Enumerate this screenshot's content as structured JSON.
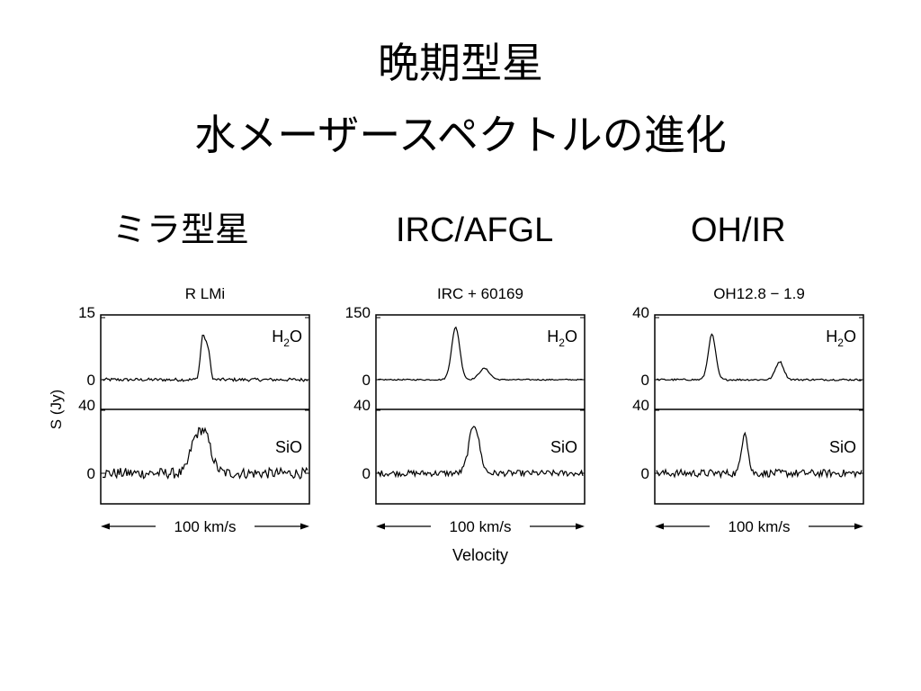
{
  "slide": {
    "title_line1": "晩期型星",
    "title_line2": "水メーザースペクトルの進化",
    "categories": [
      "ミラ型星",
      "IRC/AFGL",
      "OH/IR"
    ]
  },
  "figure": {
    "ylabel": "S (Jy)",
    "xlabel": "Velocity",
    "scalebar_label": "100 km/s"
  },
  "chart_data": [
    {
      "type": "line",
      "title": "R LMi",
      "panels": [
        {
          "name": "H2O",
          "ylim": [
            0,
            15
          ],
          "ytick_top": "15",
          "ytick_bottom": "0",
          "peaks": [
            {
              "x": 0.49,
              "height": 11,
              "width": 0.012
            },
            {
              "x": 0.515,
              "height": 7,
              "width": 0.01
            }
          ],
          "noise": 0.4
        },
        {
          "name": "SiO",
          "ylim": [
            0,
            40
          ],
          "ytick_top": "40",
          "ytick_bottom": "0",
          "peaks": [
            {
              "x": 0.49,
              "height": 28,
              "width": 0.035
            },
            {
              "x": 0.44,
              "height": 10,
              "width": 0.02
            }
          ],
          "noise": 3.5
        }
      ]
    },
    {
      "type": "line",
      "title": "IRC + 60169",
      "panels": [
        {
          "name": "H2O",
          "ylim": [
            0,
            150
          ],
          "ytick_top": "150",
          "ytick_bottom": "0",
          "peaks": [
            {
              "x": 0.38,
              "height": 130,
              "width": 0.02
            },
            {
              "x": 0.52,
              "height": 28,
              "width": 0.025
            }
          ],
          "noise": 1.5
        },
        {
          "name": "SiO",
          "ylim": [
            0,
            40
          ],
          "ytick_top": "40",
          "ytick_bottom": "0",
          "peaks": [
            {
              "x": 0.47,
              "height": 32,
              "width": 0.025
            }
          ],
          "noise": 2.0
        }
      ]
    },
    {
      "type": "line",
      "title": "OH12.8 − 1.9",
      "panels": [
        {
          "name": "H2O",
          "ylim": [
            0,
            40
          ],
          "ytick_top": "40",
          "ytick_bottom": "0",
          "peaks": [
            {
              "x": 0.27,
              "height": 30,
              "width": 0.018
            },
            {
              "x": 0.6,
              "height": 12,
              "width": 0.02
            }
          ],
          "noise": 0.6
        },
        {
          "name": "SiO",
          "ylim": [
            0,
            40
          ],
          "ytick_top": "40",
          "ytick_bottom": "0",
          "peaks": [
            {
              "x": 0.43,
              "height": 28,
              "width": 0.015
            }
          ],
          "noise": 2.5
        }
      ]
    }
  ]
}
